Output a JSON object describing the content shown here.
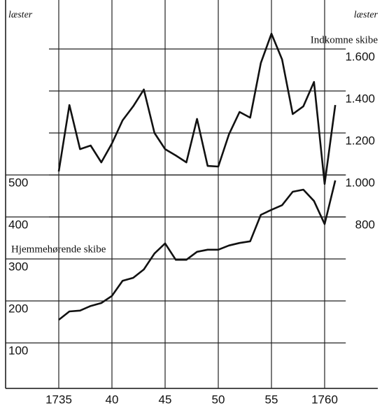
{
  "chart_data": {
    "type": "line",
    "y_label": "læster",
    "y2_label": "læster",
    "x": [
      1735,
      1736,
      1737,
      1738,
      1739,
      1740,
      1741,
      1742,
      1743,
      1744,
      1745,
      1746,
      1747,
      1748,
      1749,
      1750,
      1751,
      1752,
      1753,
      1754,
      1755,
      1756,
      1757,
      1758,
      1759,
      1760,
      1761
    ],
    "series": [
      {
        "name": "Indkomne skibe",
        "color": "#111111",
        "axis": "y2",
        "values": [
          1017,
          1333,
          1123,
          1140,
          1060,
          1150,
          1260,
          1327,
          1407,
          1200,
          1123,
          1093,
          1060,
          1267,
          1043,
          1040,
          1193,
          1300,
          1273,
          1533,
          1673,
          1550,
          1290,
          1327,
          1443,
          957,
          1333
        ]
      },
      {
        "name": "Hjemmehørende skibe",
        "color": "#111111",
        "values": [
          155,
          175,
          177,
          188,
          195,
          212,
          248,
          255,
          275,
          313,
          337,
          298,
          298,
          317,
          322,
          322,
          332,
          338,
          342,
          405,
          417,
          428,
          460,
          465,
          438,
          383,
          487
        ]
      }
    ],
    "xlim": [
      1730,
      1765
    ],
    "xticks": [
      {
        "value": 1735,
        "label": "1735"
      },
      {
        "value": 1740,
        "label": "40"
      },
      {
        "value": 1745,
        "label": "45"
      },
      {
        "value": 1750,
        "label": "50"
      },
      {
        "value": 1755,
        "label": "55"
      },
      {
        "value": 1760,
        "label": "1760"
      }
    ],
    "ylim": [
      0,
      900
    ],
    "yticks": [
      100,
      200,
      300,
      400,
      500
    ],
    "y2lim": [
      0,
      1800
    ],
    "y2ticks": [
      800,
      {
        "value": 1000,
        "label": "1.000"
      },
      {
        "value": 1200,
        "label": "1.200"
      },
      {
        "value": 1400,
        "label": "1.400"
      },
      {
        "value": 1600,
        "label": "1.600"
      }
    ],
    "grid": true
  }
}
